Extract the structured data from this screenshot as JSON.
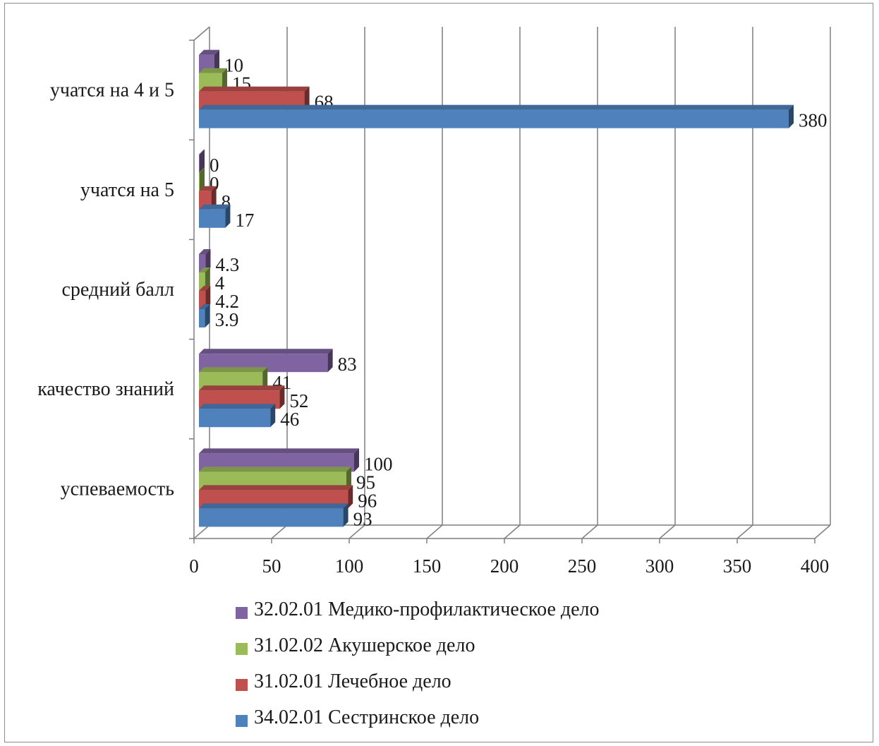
{
  "chart_data": {
    "type": "bar",
    "orientation": "horizontal",
    "style": "3d-clustered",
    "categories": [
      "учатся на 4 и 5",
      "учатся на 5",
      "средний балл",
      "качество знаний",
      "успеваемость"
    ],
    "series": [
      {
        "name": "32.02.01 Медико-профилактическое дело",
        "color": "#8064a2",
        "values": [
          10,
          0,
          4.3,
          83,
          100
        ]
      },
      {
        "name": "31.02.02 Акушерское дело",
        "color": "#9bbb59",
        "values": [
          15,
          0,
          4,
          41,
          95
        ]
      },
      {
        "name": "31.02.01 Лечебное дело",
        "color": "#c0504d",
        "values": [
          68,
          8,
          4.2,
          52,
          96
        ]
      },
      {
        "name": "34.02.01 Сестринское дело",
        "color": "#4f81bd",
        "values": [
          380,
          17,
          3.9,
          46,
          93
        ]
      }
    ],
    "xlim": [
      0,
      400
    ],
    "xticks": [
      0,
      50,
      100,
      150,
      200,
      250,
      300,
      350,
      400
    ],
    "grid": true,
    "legend_position": "bottom"
  }
}
